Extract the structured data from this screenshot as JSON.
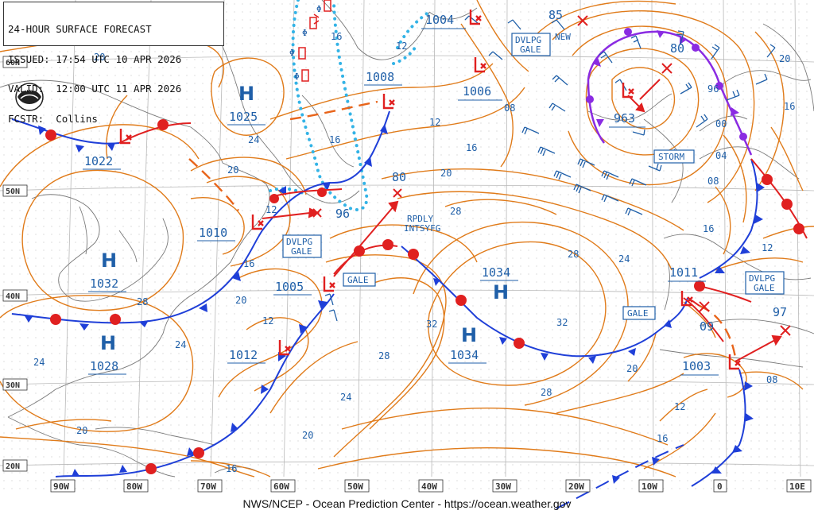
{
  "header": {
    "title": "24-HOUR SURFACE FORECAST",
    "issued": "ISSUED: 17:54 UTC 10 APR 2026",
    "valid": "VALID:  12:00 UTC 11 APR 2026",
    "forecaster": "FCSTR:  Collins"
  },
  "footer": "NWS/NCEP - Ocean Prediction Center - https://ocean.weather.gov",
  "logo_label": "NOAA",
  "colors": {
    "isobar": "#e07b1a",
    "cold_front": "#1f3fd8",
    "warm_front": "#e02020",
    "occluded_front": "#8a2be2",
    "ice_edge": "#33b3e6",
    "coast": "#7a7a7a",
    "grid": "#bcbcbc",
    "label_blue": "#1f5fa8",
    "track_red": "#e02020",
    "trough": "#e8641a",
    "wind_barb": "#1f5fa8"
  },
  "lon_labels": [
    "90W",
    "80W",
    "70W",
    "60W",
    "50W",
    "40W",
    "30W",
    "20W",
    "10W",
    "0",
    "10E"
  ],
  "lat_labels": [
    "60N",
    "50N",
    "40N",
    "30N",
    "20N"
  ],
  "pressure_centers": [
    {
      "type": "H",
      "value": "1025"
    },
    {
      "type": "H",
      "value": "1032"
    },
    {
      "type": "H",
      "value": "1028"
    },
    {
      "type": "H",
      "value": "1034"
    },
    {
      "type": "H",
      "value": "1034"
    },
    {
      "type": "L",
      "value": "1022"
    },
    {
      "type": "L",
      "value": "1010"
    },
    {
      "type": "L",
      "value": "1005"
    },
    {
      "type": "L",
      "value": "1012"
    },
    {
      "type": "L",
      "value": "1008"
    },
    {
      "type": "L",
      "value": "1006"
    },
    {
      "type": "L",
      "value": "1004"
    },
    {
      "type": "L",
      "value": "963"
    },
    {
      "type": "L",
      "value": "1011"
    },
    {
      "type": "L",
      "value": "1003"
    }
  ],
  "forecast_points": [
    "96",
    "80",
    "85",
    "80",
    "09",
    "97"
  ],
  "boxed_labels": [
    "DVLPG\nGALE",
    "DVLPG\nGALE",
    "GALE",
    "DVLPG\nGALE",
    "STORM",
    "GALE",
    "DVLPG\nGALE"
  ],
  "text_labels": [
    "RPDLY\nINTSYFG",
    "NEW"
  ],
  "isobar_labels": [
    "20",
    "16",
    "12",
    "24",
    "20",
    "12",
    "16",
    "08",
    "12",
    "16",
    "20",
    "28",
    "24",
    "28",
    "32",
    "32",
    "28",
    "28",
    "24",
    "20",
    "16",
    "12",
    "16",
    "20",
    "16",
    "12",
    "08",
    "16",
    "20",
    "24",
    "28",
    "96",
    "00",
    "04",
    "08",
    "12",
    "20",
    "16",
    "24",
    "12",
    "08",
    "20",
    "16"
  ]
}
